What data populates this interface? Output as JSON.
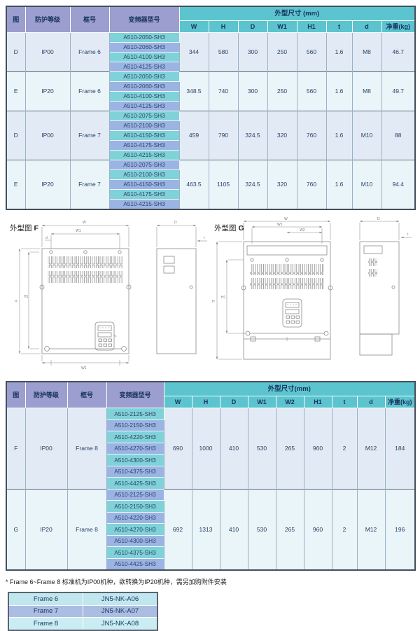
{
  "table1": {
    "left_headers": [
      "图",
      "防护等级",
      "框号",
      "变频器型号"
    ],
    "dim_header": "外型尺寸 (mm)",
    "dim_cols": [
      "W",
      "H",
      "D",
      "W1",
      "H1",
      "t",
      "d",
      "净重(kg)"
    ],
    "groups": [
      {
        "fig": "D",
        "ip": "IP00",
        "frame": "Frame 6",
        "models": [
          "A510-2050-SH3",
          "A510-2060-SH3",
          "A510-4100-SH3",
          "A510-4125-SH3"
        ],
        "values": [
          "344",
          "580",
          "300",
          "250",
          "560",
          "1.6",
          "M8",
          "46.7"
        ]
      },
      {
        "fig": "E",
        "ip": "IP20",
        "frame": "Frame 6",
        "models": [
          "A510-2050-SH3",
          "A510-2060-SH3",
          "A510-4100-SH3",
          "A510-4125-SH3"
        ],
        "values": [
          "348.5",
          "740",
          "300",
          "250",
          "560",
          "1.6",
          "M8",
          "49.7"
        ]
      },
      {
        "fig": "D",
        "ip": "IP00",
        "frame": "Frame 7",
        "models": [
          "A510-2075-SH3",
          "A510-2100-SH3",
          "A510-4150-SH3",
          "A510-4175-SH3",
          "A510-4215-SH3"
        ],
        "values": [
          "459",
          "790",
          "324.5",
          "320",
          "760",
          "1.6",
          "M10",
          "88"
        ]
      },
      {
        "fig": "E",
        "ip": "IP20",
        "frame": "Frame 7",
        "models": [
          "A510-2075-SH3",
          "A510-2100-SH3",
          "A510-4150-SH3",
          "A510-4175-SH3",
          "A510-4215-SH3"
        ],
        "values": [
          "463.5",
          "1105",
          "324.5",
          "320",
          "760",
          "1.6",
          "M10",
          "94.4"
        ]
      }
    ]
  },
  "drawings": {
    "f": {
      "title": "外型图",
      "letter": "F"
    },
    "g": {
      "title": "外型图",
      "letter": "G"
    },
    "dims": {
      "w": "W",
      "w1": "W1",
      "w2": "W2",
      "h": "H",
      "h1": "H1",
      "d": "D",
      "t": "t",
      "dd": "d"
    }
  },
  "table2": {
    "left_headers": [
      "图",
      "防护等级",
      "框号",
      "变频器型号"
    ],
    "dim_header": "外型尺寸(mm)",
    "dim_cols": [
      "W",
      "H",
      "D",
      "W1",
      "W2",
      "H1",
      "t",
      "d",
      "净重(kg)"
    ],
    "groups": [
      {
        "fig": "F",
        "ip": "IP00",
        "frame": "Frame 8",
        "models": [
          "A510-2125-SH3",
          "A510-2150-SH3",
          "A510-4220-SH3",
          "A510-4270-SH3",
          "A510-4300-SH3",
          "A510-4375-SH3",
          "A510-4425-SH3"
        ],
        "values": [
          "690",
          "1000",
          "410",
          "530",
          "265",
          "960",
          "2",
          "M12",
          "184"
        ]
      },
      {
        "fig": "G",
        "ip": "IP20",
        "frame": "Frame 8",
        "models": [
          "A510-2125-SH3",
          "A510-2150-SH3",
          "A510-4220-SH3",
          "A510-4270-SH3",
          "A510-4300-SH3",
          "A510-4375-SH3",
          "A510-4425-SH3"
        ],
        "values": [
          "692",
          "1313",
          "410",
          "530",
          "265",
          "960",
          "2",
          "M12",
          "196"
        ]
      }
    ]
  },
  "footnote": "* Frame 6~Frame 8 标准机为IP00机种，欲转换为IP20机种，需另加购附件安装",
  "accessory": {
    "rows": [
      {
        "frame": "Frame 6",
        "part": "JN5-NK-A06"
      },
      {
        "frame": "Frame 7",
        "part": "JN5-NK-A07"
      },
      {
        "frame": "Frame 8",
        "part": "JN5-NK-A08"
      }
    ]
  },
  "colors": {
    "band_teal": "#5cc4ce",
    "header_periwinkle": "#9b9ecf",
    "model_teal": "#7fd2d8",
    "model_blue": "#9cb4e4"
  }
}
